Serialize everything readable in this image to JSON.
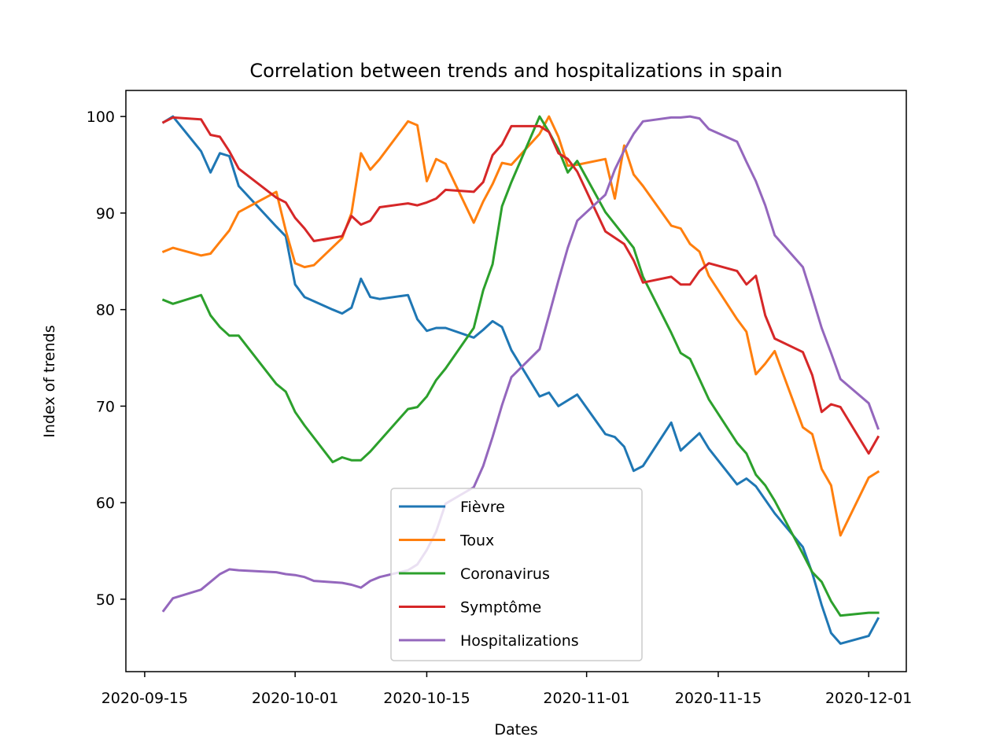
{
  "chart_data": {
    "type": "line",
    "title": "Correlation between trends and hospitalizations in spain",
    "xlabel": "Dates",
    "ylabel": "Index of trends",
    "xlim": [
      "2020-09-13",
      "2020-12-05"
    ],
    "ylim": [
      42.5,
      102.7
    ],
    "x_ticks": [
      "2020-09-15",
      "2020-10-01",
      "2020-10-15",
      "2020-11-01",
      "2020-11-15",
      "2020-12-01"
    ],
    "y_ticks": [
      50,
      60,
      70,
      80,
      90,
      100
    ],
    "grid": false,
    "legend_position": "lower center",
    "series": [
      {
        "name": "Fièvre",
        "color": "#1f77b4",
        "points": [
          [
            "2020-09-17",
            99.4
          ],
          [
            "2020-09-18",
            100.0
          ],
          [
            "2020-09-21",
            96.4
          ],
          [
            "2020-09-22",
            94.2
          ],
          [
            "2020-09-23",
            96.2
          ],
          [
            "2020-09-24",
            95.9
          ],
          [
            "2020-09-25",
            92.8
          ],
          [
            "2020-09-29",
            88.6
          ],
          [
            "2020-09-30",
            87.6
          ],
          [
            "2020-10-01",
            82.6
          ],
          [
            "2020-10-02",
            81.3
          ],
          [
            "2020-10-05",
            80.0
          ],
          [
            "2020-10-06",
            79.6
          ],
          [
            "2020-10-07",
            80.2
          ],
          [
            "2020-10-08",
            83.2
          ],
          [
            "2020-10-09",
            81.3
          ],
          [
            "2020-10-10",
            81.1
          ],
          [
            "2020-10-13",
            81.5
          ],
          [
            "2020-10-14",
            79.0
          ],
          [
            "2020-10-15",
            77.8
          ],
          [
            "2020-10-16",
            78.1
          ],
          [
            "2020-10-17",
            78.1
          ],
          [
            "2020-10-20",
            77.1
          ],
          [
            "2020-10-21",
            77.9
          ],
          [
            "2020-10-22",
            78.8
          ],
          [
            "2020-10-23",
            78.2
          ],
          [
            "2020-10-24",
            75.8
          ],
          [
            "2020-10-27",
            71.0
          ],
          [
            "2020-10-28",
            71.4
          ],
          [
            "2020-10-29",
            70.0
          ],
          [
            "2020-10-31",
            71.2
          ],
          [
            "2020-11-03",
            67.1
          ],
          [
            "2020-11-04",
            66.8
          ],
          [
            "2020-11-05",
            65.8
          ],
          [
            "2020-11-06",
            63.3
          ],
          [
            "2020-11-07",
            63.8
          ],
          [
            "2020-11-10",
            68.3
          ],
          [
            "2020-11-11",
            65.4
          ],
          [
            "2020-11-13",
            67.2
          ],
          [
            "2020-11-14",
            65.6
          ],
          [
            "2020-11-17",
            61.9
          ],
          [
            "2020-11-18",
            62.5
          ],
          [
            "2020-11-19",
            61.7
          ],
          [
            "2020-11-21",
            58.9
          ],
          [
            "2020-11-24",
            55.4
          ],
          [
            "2020-11-25",
            52.7
          ],
          [
            "2020-11-26",
            49.4
          ],
          [
            "2020-11-27",
            46.5
          ],
          [
            "2020-11-28",
            45.4
          ],
          [
            "2020-12-01",
            46.2
          ],
          [
            "2020-12-02",
            48.0
          ]
        ]
      },
      {
        "name": "Toux",
        "color": "#ff7f0e",
        "points": [
          [
            "2020-09-17",
            86.0
          ],
          [
            "2020-09-18",
            86.4
          ],
          [
            "2020-09-21",
            85.6
          ],
          [
            "2020-09-22",
            85.8
          ],
          [
            "2020-09-23",
            87.0
          ],
          [
            "2020-09-24",
            88.2
          ],
          [
            "2020-09-25",
            90.1
          ],
          [
            "2020-09-29",
            92.2
          ],
          [
            "2020-09-30",
            88.2
          ],
          [
            "2020-10-01",
            84.8
          ],
          [
            "2020-10-02",
            84.4
          ],
          [
            "2020-10-03",
            84.6
          ],
          [
            "2020-10-06",
            87.4
          ],
          [
            "2020-10-07",
            90.0
          ],
          [
            "2020-10-08",
            96.2
          ],
          [
            "2020-10-09",
            94.5
          ],
          [
            "2020-10-10",
            95.6
          ],
          [
            "2020-10-13",
            99.5
          ],
          [
            "2020-10-14",
            99.1
          ],
          [
            "2020-10-15",
            93.3
          ],
          [
            "2020-10-16",
            95.6
          ],
          [
            "2020-10-17",
            95.1
          ],
          [
            "2020-10-20",
            89.0
          ],
          [
            "2020-10-21",
            91.2
          ],
          [
            "2020-10-22",
            93.0
          ],
          [
            "2020-10-23",
            95.2
          ],
          [
            "2020-10-24",
            95.0
          ],
          [
            "2020-10-27",
            98.2
          ],
          [
            "2020-10-28",
            100.0
          ],
          [
            "2020-10-29",
            97.9
          ],
          [
            "2020-10-30",
            94.9
          ],
          [
            "2020-10-31",
            95.0
          ],
          [
            "2020-11-03",
            95.6
          ],
          [
            "2020-11-04",
            91.5
          ],
          [
            "2020-11-05",
            97.0
          ],
          [
            "2020-11-06",
            94.0
          ],
          [
            "2020-11-07",
            92.8
          ],
          [
            "2020-11-10",
            88.7
          ],
          [
            "2020-11-11",
            88.4
          ],
          [
            "2020-11-12",
            86.8
          ],
          [
            "2020-11-13",
            86.0
          ],
          [
            "2020-11-14",
            83.5
          ],
          [
            "2020-11-17",
            79.0
          ],
          [
            "2020-11-18",
            77.7
          ],
          [
            "2020-11-19",
            73.3
          ],
          [
            "2020-11-20",
            74.4
          ],
          [
            "2020-11-21",
            75.7
          ],
          [
            "2020-11-24",
            67.8
          ],
          [
            "2020-11-25",
            67.1
          ],
          [
            "2020-11-26",
            63.5
          ],
          [
            "2020-11-27",
            61.8
          ],
          [
            "2020-11-28",
            56.6
          ],
          [
            "2020-12-01",
            62.6
          ],
          [
            "2020-12-02",
            63.2
          ]
        ]
      },
      {
        "name": "Coronavirus",
        "color": "#2ca02c",
        "points": [
          [
            "2020-09-17",
            81.0
          ],
          [
            "2020-09-18",
            80.6
          ],
          [
            "2020-09-21",
            81.5
          ],
          [
            "2020-09-22",
            79.4
          ],
          [
            "2020-09-23",
            78.2
          ],
          [
            "2020-09-24",
            77.3
          ],
          [
            "2020-09-25",
            77.3
          ],
          [
            "2020-09-29",
            72.3
          ],
          [
            "2020-09-30",
            71.5
          ],
          [
            "2020-10-01",
            69.4
          ],
          [
            "2020-10-02",
            68.0
          ],
          [
            "2020-10-05",
            64.2
          ],
          [
            "2020-10-06",
            64.7
          ],
          [
            "2020-10-07",
            64.4
          ],
          [
            "2020-10-08",
            64.4
          ],
          [
            "2020-10-09",
            65.3
          ],
          [
            "2020-10-13",
            69.7
          ],
          [
            "2020-10-14",
            69.9
          ],
          [
            "2020-10-15",
            71.0
          ],
          [
            "2020-10-16",
            72.7
          ],
          [
            "2020-10-17",
            73.9
          ],
          [
            "2020-10-20",
            78.1
          ],
          [
            "2020-10-21",
            82.0
          ],
          [
            "2020-10-22",
            84.7
          ],
          [
            "2020-10-23",
            90.7
          ],
          [
            "2020-10-24",
            93.2
          ],
          [
            "2020-10-27",
            100.0
          ],
          [
            "2020-10-28",
            98.4
          ],
          [
            "2020-10-29",
            96.6
          ],
          [
            "2020-10-30",
            94.2
          ],
          [
            "2020-10-31",
            95.4
          ],
          [
            "2020-11-03",
            90.1
          ],
          [
            "2020-11-06",
            86.4
          ],
          [
            "2020-11-07",
            83.4
          ],
          [
            "2020-11-10",
            77.6
          ],
          [
            "2020-11-11",
            75.5
          ],
          [
            "2020-11-12",
            74.9
          ],
          [
            "2020-11-13",
            72.8
          ],
          [
            "2020-11-14",
            70.7
          ],
          [
            "2020-11-17",
            66.2
          ],
          [
            "2020-11-18",
            65.1
          ],
          [
            "2020-11-19",
            62.9
          ],
          [
            "2020-11-20",
            61.8
          ],
          [
            "2020-11-21",
            60.2
          ],
          [
            "2020-11-24",
            54.7
          ],
          [
            "2020-11-25",
            52.8
          ],
          [
            "2020-11-26",
            51.8
          ],
          [
            "2020-11-27",
            49.8
          ],
          [
            "2020-11-28",
            48.3
          ],
          [
            "2020-12-01",
            48.6
          ],
          [
            "2020-12-02",
            48.6
          ]
        ]
      },
      {
        "name": "Symptôme",
        "color": "#d62728",
        "points": [
          [
            "2020-09-17",
            99.4
          ],
          [
            "2020-09-18",
            99.9
          ],
          [
            "2020-09-21",
            99.7
          ],
          [
            "2020-09-22",
            98.1
          ],
          [
            "2020-09-23",
            97.9
          ],
          [
            "2020-09-24",
            96.4
          ],
          [
            "2020-09-25",
            94.6
          ],
          [
            "2020-09-29",
            91.6
          ],
          [
            "2020-09-30",
            91.1
          ],
          [
            "2020-10-01",
            89.5
          ],
          [
            "2020-10-02",
            88.4
          ],
          [
            "2020-10-03",
            87.1
          ],
          [
            "2020-10-06",
            87.6
          ],
          [
            "2020-10-07",
            89.7
          ],
          [
            "2020-10-08",
            88.8
          ],
          [
            "2020-10-09",
            89.2
          ],
          [
            "2020-10-10",
            90.6
          ],
          [
            "2020-10-13",
            91.0
          ],
          [
            "2020-10-14",
            90.8
          ],
          [
            "2020-10-15",
            91.1
          ],
          [
            "2020-10-16",
            91.5
          ],
          [
            "2020-10-17",
            92.4
          ],
          [
            "2020-10-20",
            92.2
          ],
          [
            "2020-10-21",
            93.2
          ],
          [
            "2020-10-22",
            96.0
          ],
          [
            "2020-10-23",
            97.1
          ],
          [
            "2020-10-24",
            99.0
          ],
          [
            "2020-10-27",
            99.0
          ],
          [
            "2020-10-28",
            98.4
          ],
          [
            "2020-10-29",
            96.2
          ],
          [
            "2020-10-30",
            95.6
          ],
          [
            "2020-10-31",
            94.3
          ],
          [
            "2020-11-03",
            88.1
          ],
          [
            "2020-11-05",
            86.8
          ],
          [
            "2020-11-06",
            85.1
          ],
          [
            "2020-11-07",
            82.8
          ],
          [
            "2020-11-10",
            83.4
          ],
          [
            "2020-11-11",
            82.6
          ],
          [
            "2020-11-12",
            82.6
          ],
          [
            "2020-11-13",
            84.0
          ],
          [
            "2020-11-14",
            84.8
          ],
          [
            "2020-11-17",
            84.0
          ],
          [
            "2020-11-18",
            82.6
          ],
          [
            "2020-11-19",
            83.5
          ],
          [
            "2020-11-20",
            79.4
          ],
          [
            "2020-11-21",
            77.0
          ],
          [
            "2020-11-24",
            75.6
          ],
          [
            "2020-11-25",
            73.2
          ],
          [
            "2020-11-26",
            69.4
          ],
          [
            "2020-11-27",
            70.2
          ],
          [
            "2020-11-28",
            69.9
          ],
          [
            "2020-12-01",
            65.1
          ],
          [
            "2020-12-02",
            66.8
          ]
        ]
      },
      {
        "name": "Hospitalizations",
        "color": "#9467bd",
        "points": [
          [
            "2020-09-17",
            48.8
          ],
          [
            "2020-09-18",
            50.1
          ],
          [
            "2020-09-21",
            51.0
          ],
          [
            "2020-09-22",
            51.8
          ],
          [
            "2020-09-23",
            52.6
          ],
          [
            "2020-09-24",
            53.1
          ],
          [
            "2020-09-25",
            53.0
          ],
          [
            "2020-09-29",
            52.8
          ],
          [
            "2020-09-30",
            52.6
          ],
          [
            "2020-10-01",
            52.5
          ],
          [
            "2020-10-02",
            52.3
          ],
          [
            "2020-10-03",
            51.9
          ],
          [
            "2020-10-06",
            51.7
          ],
          [
            "2020-10-07",
            51.5
          ],
          [
            "2020-10-08",
            51.2
          ],
          [
            "2020-10-09",
            51.9
          ],
          [
            "2020-10-10",
            52.3
          ],
          [
            "2020-10-13",
            53.0
          ],
          [
            "2020-10-14",
            53.6
          ],
          [
            "2020-10-15",
            55.1
          ],
          [
            "2020-10-16",
            57.0
          ],
          [
            "2020-10-17",
            59.9
          ],
          [
            "2020-10-20",
            61.6
          ],
          [
            "2020-10-21",
            63.8
          ],
          [
            "2020-10-22",
            66.8
          ],
          [
            "2020-10-23",
            70.1
          ],
          [
            "2020-10-24",
            73.0
          ],
          [
            "2020-10-27",
            75.9
          ],
          [
            "2020-10-28",
            79.4
          ],
          [
            "2020-10-29",
            83.0
          ],
          [
            "2020-10-30",
            86.4
          ],
          [
            "2020-10-31",
            89.2
          ],
          [
            "2020-11-03",
            91.9
          ],
          [
            "2020-11-04",
            94.5
          ],
          [
            "2020-11-05",
            96.5
          ],
          [
            "2020-11-06",
            98.2
          ],
          [
            "2020-11-07",
            99.5
          ],
          [
            "2020-11-10",
            99.9
          ],
          [
            "2020-11-11",
            99.9
          ],
          [
            "2020-11-12",
            100.0
          ],
          [
            "2020-11-13",
            99.8
          ],
          [
            "2020-11-14",
            98.7
          ],
          [
            "2020-11-17",
            97.4
          ],
          [
            "2020-11-18",
            95.3
          ],
          [
            "2020-11-19",
            93.3
          ],
          [
            "2020-11-20",
            90.8
          ],
          [
            "2020-11-21",
            87.7
          ],
          [
            "2020-11-24",
            84.4
          ],
          [
            "2020-11-25",
            81.3
          ],
          [
            "2020-11-26",
            78.1
          ],
          [
            "2020-11-27",
            75.5
          ],
          [
            "2020-11-28",
            72.8
          ],
          [
            "2020-12-01",
            70.3
          ],
          [
            "2020-12-02",
            67.7
          ]
        ]
      }
    ]
  }
}
